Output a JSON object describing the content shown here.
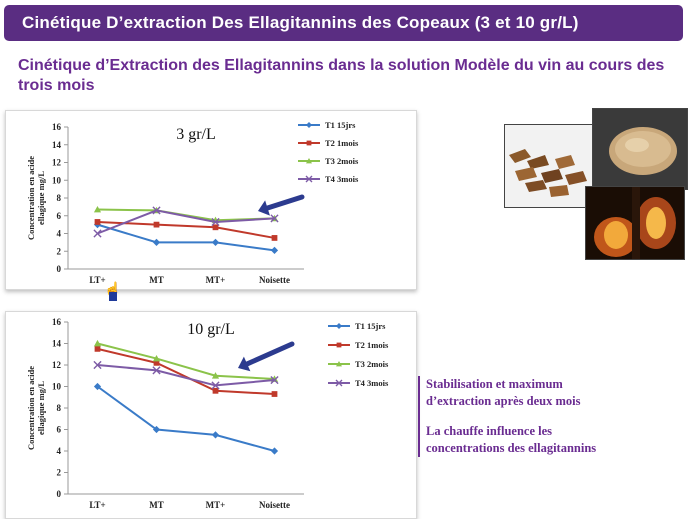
{
  "header": {
    "title": "Cinétique D’extraction Des Ellagitannins des Copeaux (3 et 10 gr/L)",
    "subtitle": "Cinétique d’Extraction des Ellagitannins dans la solution Modèle du vin au cours des trois mois"
  },
  "notes": {
    "line1a": "Stabilisation et maximum",
    "line1b": "d’extraction après deux mois",
    "line2a": "La chauffe influence les",
    "line2b": "concentrations des ellagitannins"
  },
  "colors": {
    "title_bg": "#5a2d82",
    "accent": "#6a2c91",
    "series": [
      "#3a7bc8",
      "#c0392b",
      "#8bc34a",
      "#7d5ba6"
    ],
    "arrow": "#2c3b8f"
  },
  "chart_data": [
    {
      "type": "line",
      "title": "3 gr/L",
      "ylabel": "Concentration en acide ellagique mg/L",
      "categories": [
        "LT+",
        "MT",
        "MT+",
        "Noisette"
      ],
      "ylim": [
        0,
        16
      ],
      "yticks": [
        0,
        2,
        4,
        6,
        8,
        10,
        12,
        14,
        16
      ],
      "legend_position": "right",
      "series": [
        {
          "name": "T1 15jrs",
          "values": [
            5,
            3,
            3,
            2.1
          ],
          "marker": "diamond"
        },
        {
          "name": "T2 1mois",
          "values": [
            5.3,
            5,
            4.7,
            3.5
          ],
          "marker": "square"
        },
        {
          "name": "T3 2mois",
          "values": [
            6.7,
            6.6,
            5.5,
            5.7
          ],
          "marker": "triangle"
        },
        {
          "name": "T4 3mois",
          "values": [
            4,
            6.6,
            5.3,
            5.7
          ],
          "marker": "x"
        }
      ]
    },
    {
      "type": "line",
      "title": "10 gr/L",
      "ylabel": "Concentration en acide ellagique mg/L",
      "categories": [
        "LT+",
        "MT",
        "MT+",
        "Noisette"
      ],
      "ylim": [
        0,
        16
      ],
      "yticks": [
        0,
        2,
        4,
        6,
        8,
        10,
        12,
        14,
        16
      ],
      "legend_position": "right",
      "series": [
        {
          "name": "T1 15jrs",
          "values": [
            10,
            6,
            5.5,
            4
          ],
          "marker": "diamond"
        },
        {
          "name": "T2 1mois",
          "values": [
            13.5,
            12.2,
            9.6,
            9.3
          ],
          "marker": "square"
        },
        {
          "name": "T3 2mois",
          "values": [
            14,
            12.6,
            11,
            10.7
          ],
          "marker": "triangle"
        },
        {
          "name": "T4 3mois",
          "values": [
            12,
            11.5,
            10.1,
            10.6
          ],
          "marker": "x"
        }
      ]
    }
  ]
}
